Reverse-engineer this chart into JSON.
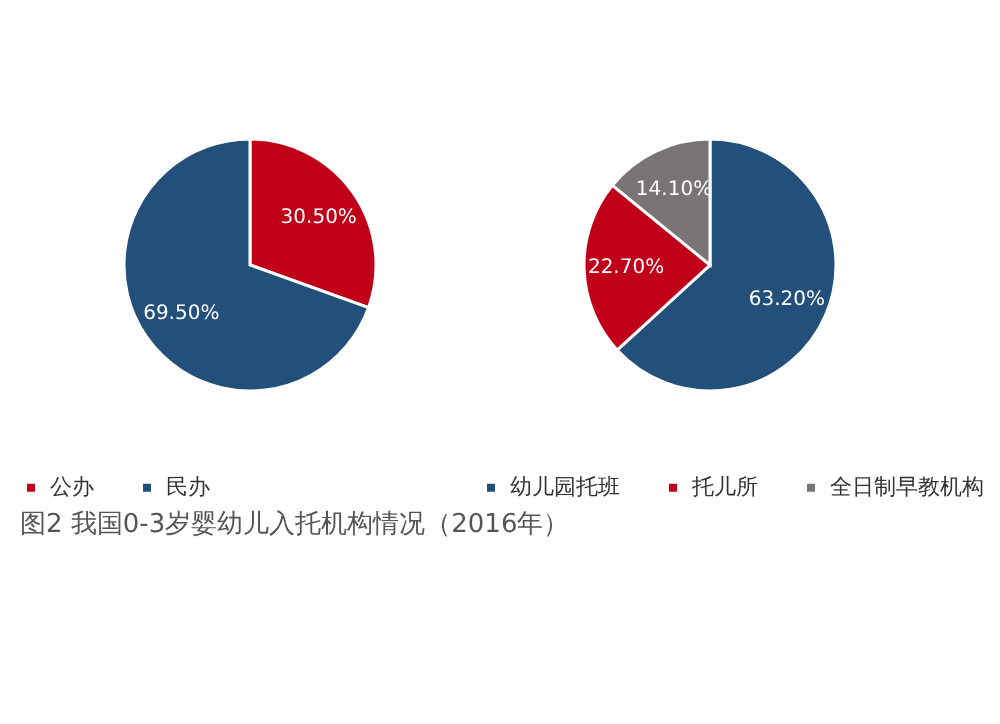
{
  "chart_data": [
    {
      "type": "pie",
      "categories": [
        "公办",
        "民办"
      ],
      "values": [
        30.5,
        69.5
      ],
      "colors": [
        "#c00018",
        "#23507a"
      ],
      "value_labels": [
        "30.50%",
        "69.50%"
      ],
      "legend": "bottom",
      "annotations": [
        "图2  我国0-3岁婴幼儿入托机构情况（2016年）"
      ]
    },
    {
      "type": "pie",
      "categories": [
        "幼儿园托班",
        "托儿所",
        "全日制早教机构"
      ],
      "values": [
        63.2,
        22.7,
        14.1
      ],
      "colors": [
        "#23507a",
        "#c00018",
        "#7a7574"
      ],
      "value_labels": [
        "63.20%",
        "22.70%",
        "14.10%"
      ],
      "legend": "bottom"
    }
  ]
}
